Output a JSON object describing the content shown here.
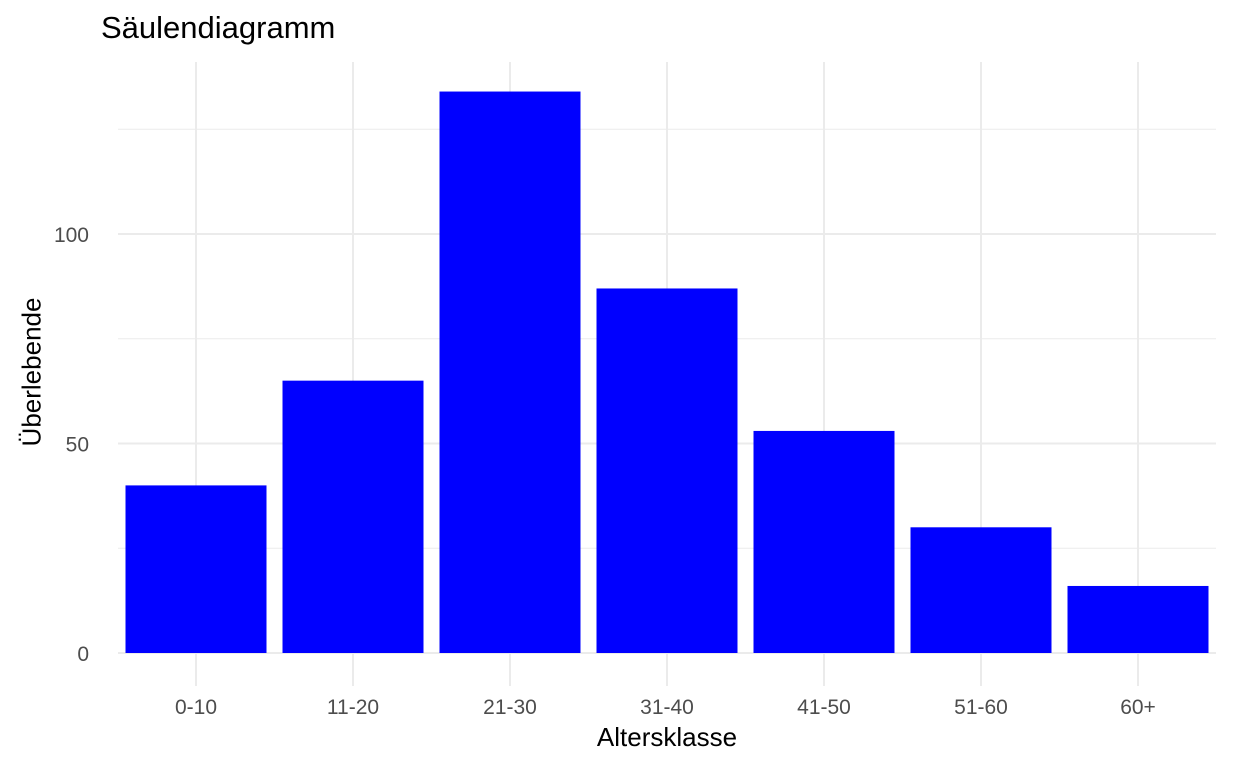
{
  "chart_data": {
    "type": "bar",
    "title": "Säulendiagramm",
    "xlabel": "Altersklasse",
    "ylabel": "Überlebende",
    "categories": [
      "0-10",
      "11-20",
      "21-30",
      "31-40",
      "41-50",
      "51-60",
      "60+"
    ],
    "values": [
      40,
      65,
      134,
      87,
      53,
      30,
      16
    ],
    "ylim": [
      0,
      141
    ],
    "yticks": [
      0,
      50,
      100
    ],
    "grid": true,
    "legend": "none",
    "bar_color": "#0000ff",
    "grid_color": "#ebebeb",
    "tick_label_color": "#4d4d4d"
  }
}
